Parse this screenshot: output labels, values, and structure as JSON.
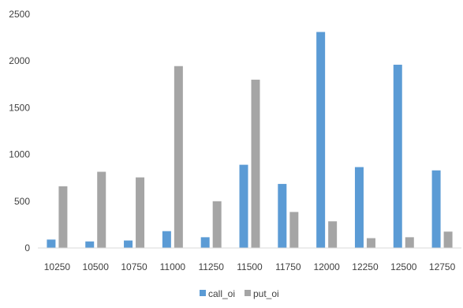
{
  "chart_data": {
    "type": "bar",
    "categories": [
      "10250",
      "10500",
      "10750",
      "11000",
      "11250",
      "11500",
      "11750",
      "12000",
      "12250",
      "12500",
      "12750"
    ],
    "series": [
      {
        "name": "call_oi",
        "color": "#5b9bd5",
        "values": [
          90,
          70,
          80,
          180,
          115,
          890,
          685,
          2310,
          865,
          1960,
          830
        ]
      },
      {
        "name": "put_oi",
        "color": "#a5a5a5",
        "values": [
          660,
          815,
          755,
          1945,
          500,
          1800,
          385,
          285,
          105,
          115,
          175
        ]
      }
    ],
    "y_ticks": [
      "0",
      "500",
      "1000",
      "1500",
      "2000",
      "2500"
    ],
    "ylim": [
      0,
      2500
    ],
    "grid": false,
    "legend_position": "bottom"
  }
}
